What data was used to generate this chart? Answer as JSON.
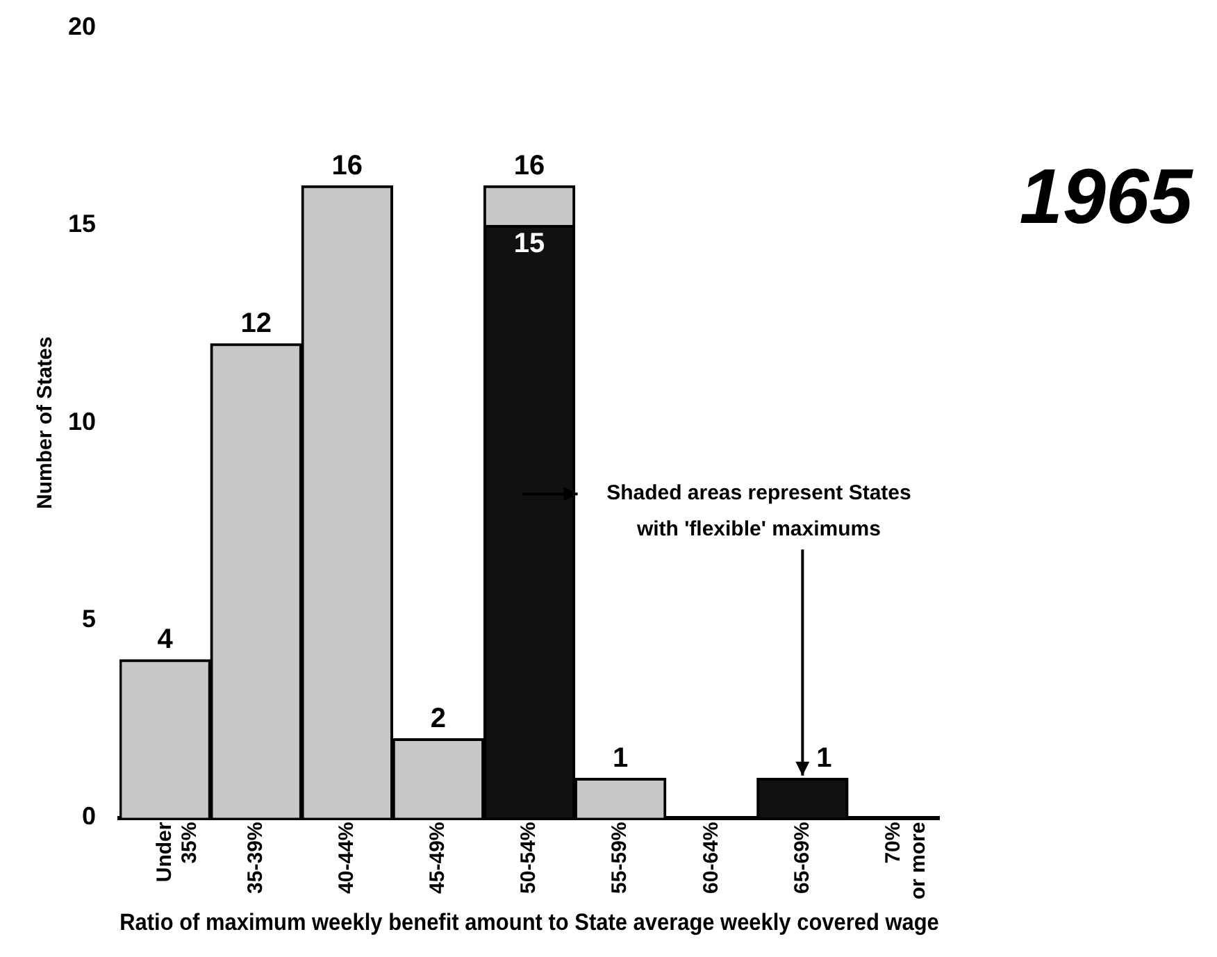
{
  "chart_data": {
    "type": "bar",
    "stacked": true,
    "xlabel": "Ratio of maximum weekly benefit amount to State average weekly covered wage",
    "ylabel": "Number of States",
    "categories": [
      "Under 35%",
      "35-39%",
      "40-44%",
      "45-49%",
      "50-54%",
      "55-59%",
      "60-64%",
      "65-69%",
      "70% or more"
    ],
    "series": [
      {
        "color": "#111111",
        "values": [
          0,
          0,
          0,
          0,
          15,
          0,
          0,
          1,
          0
        ],
        "value_labels": [
          null,
          null,
          null,
          null,
          "15",
          null,
          null,
          "1",
          null
        ]
      },
      {
        "color": "#c8c8c8",
        "values": [
          4,
          12,
          16,
          2,
          1,
          1,
          0,
          0,
          0
        ],
        "value_labels": [
          "4",
          "12",
          "16",
          "2",
          null,
          "1",
          null,
          null,
          null
        ]
      }
    ],
    "totals": [
      null,
      null,
      null,
      null,
      "16",
      null,
      null,
      null,
      null
    ],
    "ylim": [
      0,
      20
    ],
    "yticks": [
      0,
      5,
      10,
      15,
      20
    ],
    "grid": false,
    "legend": false,
    "annotations": [
      "1965",
      {
        "text": "Shaded areas represent States with 'flexible' maximums",
        "x": "65-69%",
        "y": 1
      }
    ]
  }
}
